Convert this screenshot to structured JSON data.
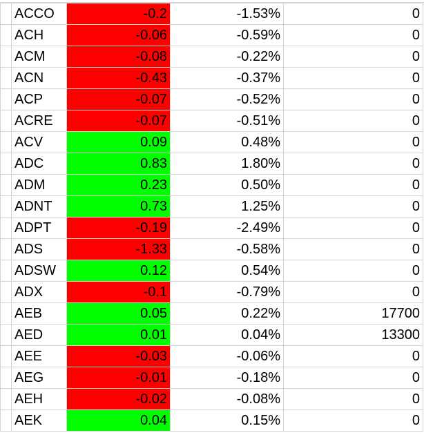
{
  "rows": [
    {
      "ticker": "ACCO",
      "change": "-0.2",
      "pct": "-1.53%",
      "value": "0",
      "status": "neg"
    },
    {
      "ticker": "ACH",
      "change": "-0.06",
      "pct": "-0.59%",
      "value": "0",
      "status": "neg"
    },
    {
      "ticker": "ACM",
      "change": "-0.08",
      "pct": "-0.22%",
      "value": "0",
      "status": "neg"
    },
    {
      "ticker": "ACN",
      "change": "-0.43",
      "pct": "-0.37%",
      "value": "0",
      "status": "neg"
    },
    {
      "ticker": "ACP",
      "change": "-0.07",
      "pct": "-0.52%",
      "value": "0",
      "status": "neg"
    },
    {
      "ticker": "ACRE",
      "change": "-0.07",
      "pct": "-0.51%",
      "value": "0",
      "status": "neg"
    },
    {
      "ticker": "ACV",
      "change": "0.09",
      "pct": "0.48%",
      "value": "0",
      "status": "pos"
    },
    {
      "ticker": "ADC",
      "change": "0.83",
      "pct": "1.80%",
      "value": "0",
      "status": "pos"
    },
    {
      "ticker": "ADM",
      "change": "0.23",
      "pct": "0.50%",
      "value": "0",
      "status": "pos"
    },
    {
      "ticker": "ADNT",
      "change": "0.73",
      "pct": "1.25%",
      "value": "0",
      "status": "pos"
    },
    {
      "ticker": "ADPT",
      "change": "-0.19",
      "pct": "-2.49%",
      "value": "0",
      "status": "neg"
    },
    {
      "ticker": "ADS",
      "change": "-1.33",
      "pct": "-0.58%",
      "value": "0",
      "status": "neg"
    },
    {
      "ticker": "ADSW",
      "change": "0.12",
      "pct": "0.54%",
      "value": "0",
      "status": "pos"
    },
    {
      "ticker": "ADX",
      "change": "-0.1",
      "pct": "-0.79%",
      "value": "0",
      "status": "neg"
    },
    {
      "ticker": "AEB",
      "change": "0.05",
      "pct": "0.22%",
      "value": "17700",
      "status": "pos"
    },
    {
      "ticker": "AED",
      "change": "0.01",
      "pct": "0.04%",
      "value": "13300",
      "status": "pos"
    },
    {
      "ticker": "AEE",
      "change": "-0.03",
      "pct": "-0.06%",
      "value": "0",
      "status": "neg"
    },
    {
      "ticker": "AEG",
      "change": "-0.01",
      "pct": "-0.18%",
      "value": "0",
      "status": "neg"
    },
    {
      "ticker": "AEH",
      "change": "-0.02",
      "pct": "-0.08%",
      "value": "0",
      "status": "neg"
    },
    {
      "ticker": "AEK",
      "change": "0.04",
      "pct": "0.15%",
      "value": "0",
      "status": "pos"
    }
  ],
  "colors": {
    "negative_fill": "#ff0000",
    "positive_fill": "#00ff00",
    "gridline": "#d4d4d4"
  }
}
